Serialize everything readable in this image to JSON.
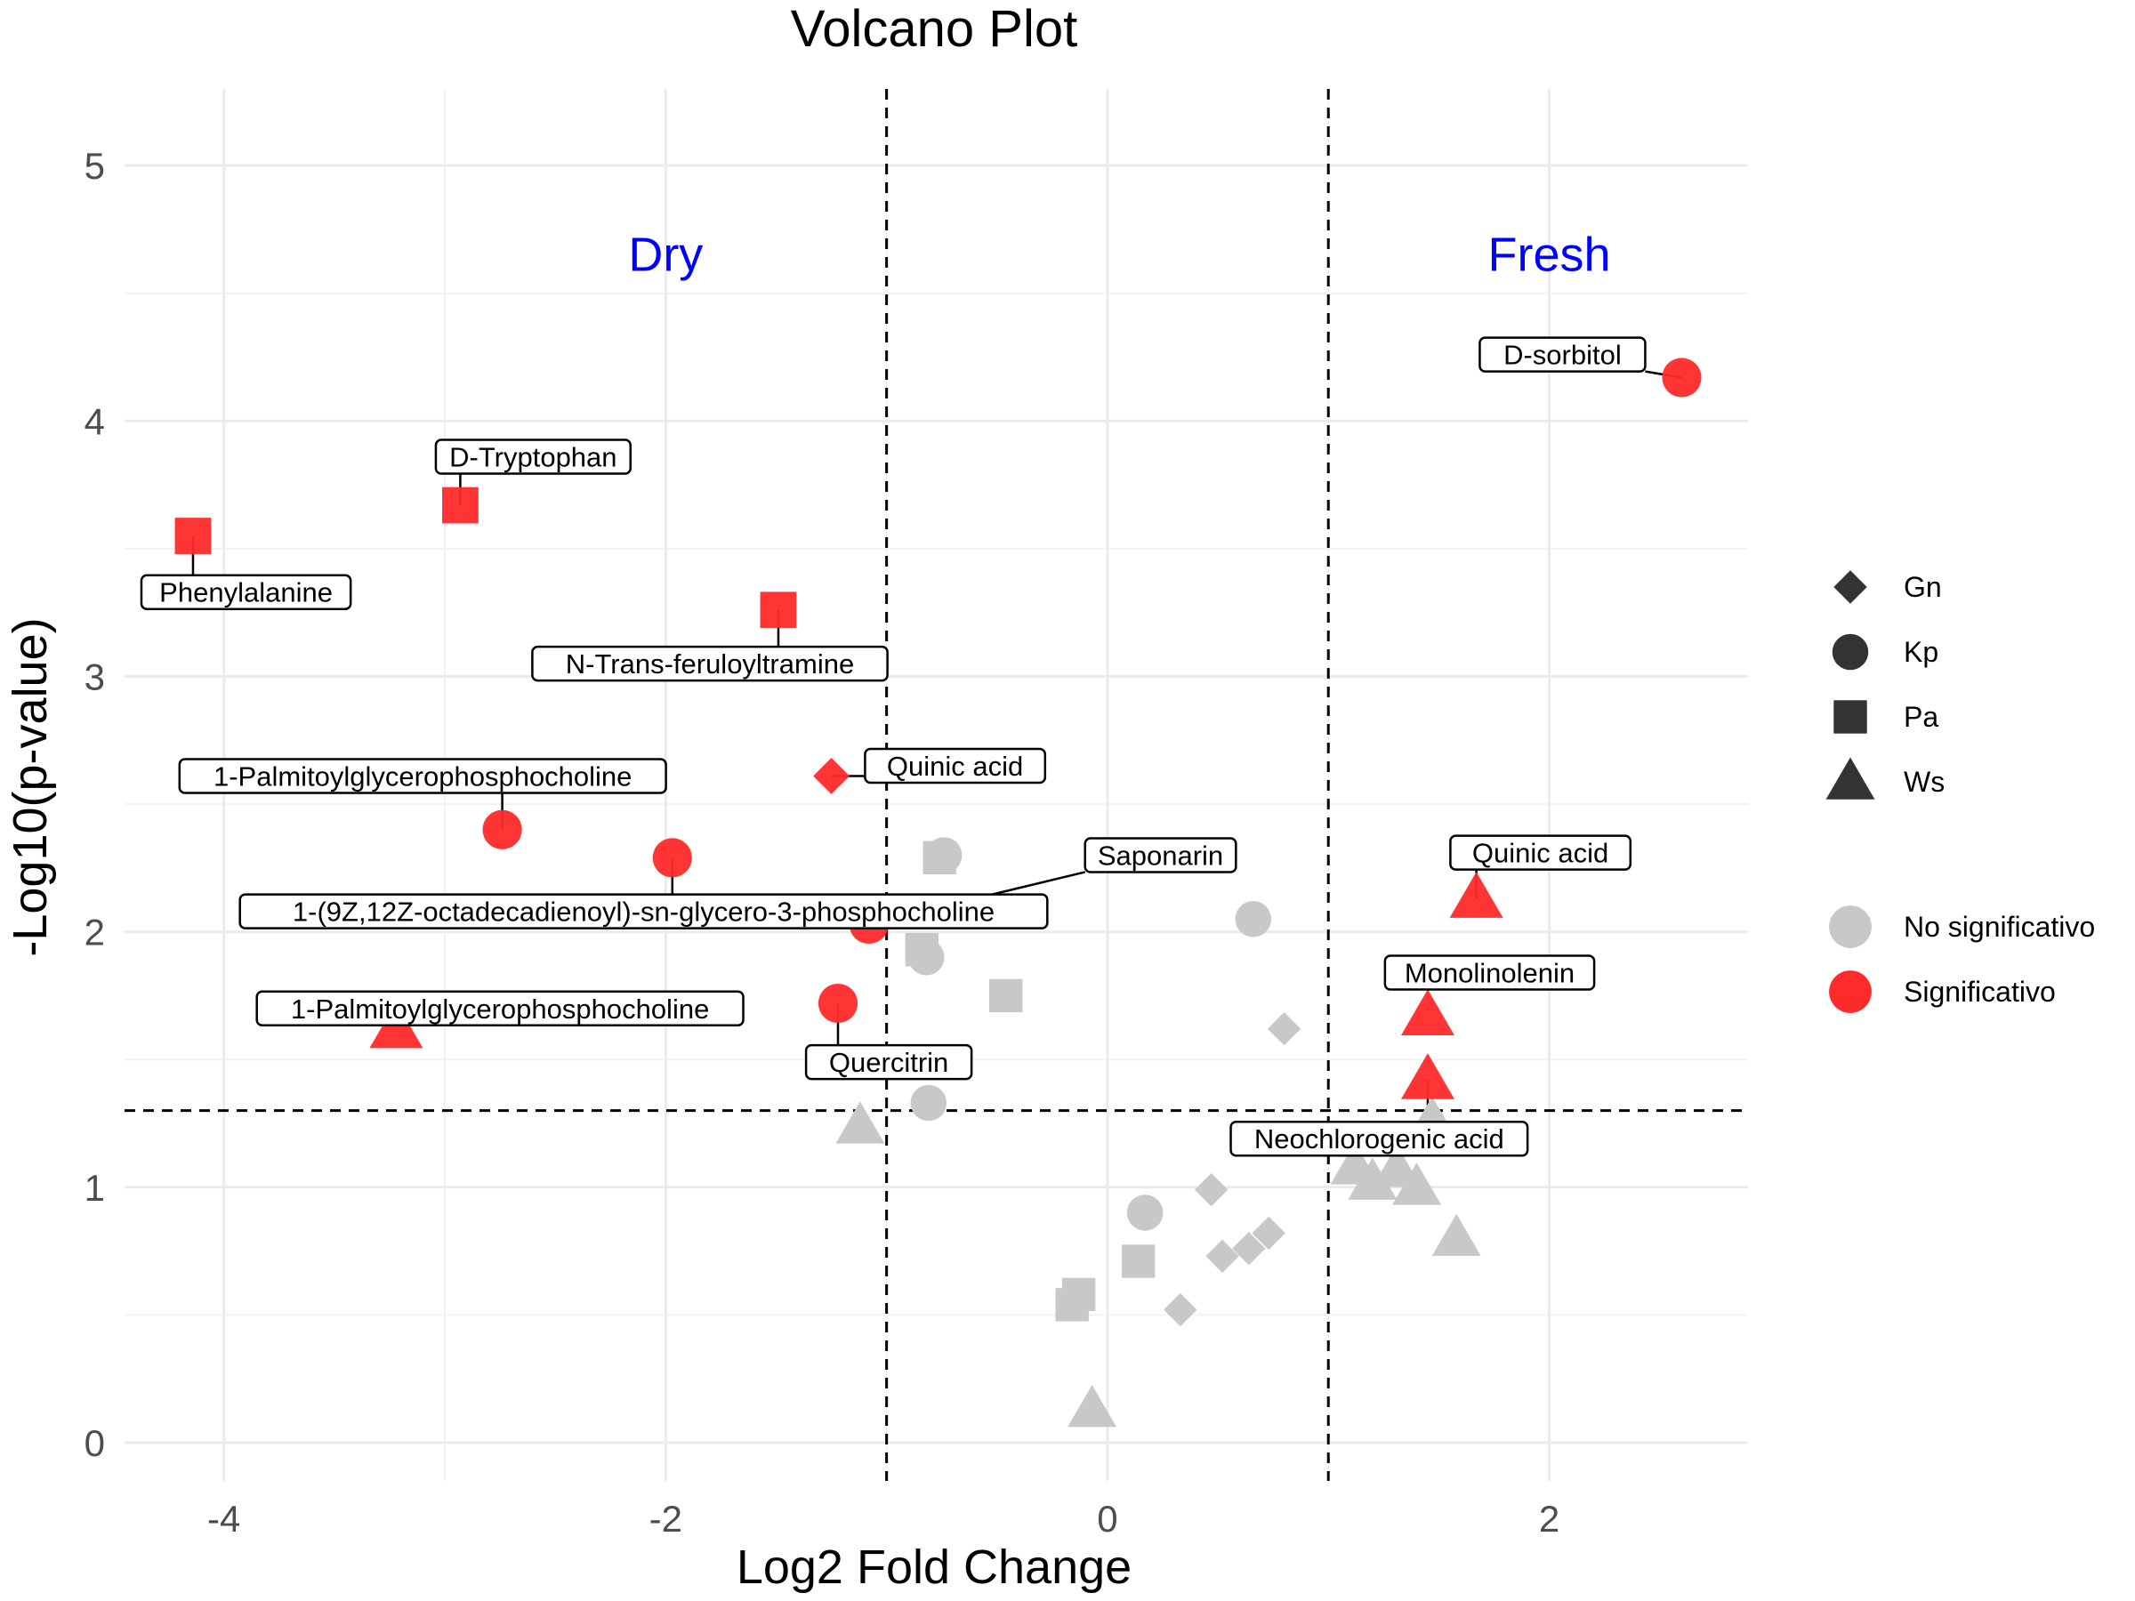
{
  "chart_data": {
    "type": "scatter",
    "title": "Volcano Plot",
    "xlabel": "Log2 Fold Change",
    "ylabel": "-Log10(p-value)",
    "xlim": [
      -4.45,
      2.9
    ],
    "ylim": [
      -0.15,
      5.3
    ],
    "xticks": [
      -4,
      -2,
      0,
      2
    ],
    "yticks": [
      0,
      1,
      2,
      3,
      4,
      5
    ],
    "xtick_labels": [
      "-4",
      "-2",
      "0",
      "2"
    ],
    "ytick_labels": [
      "0",
      "1",
      "2",
      "3",
      "4",
      "5"
    ],
    "grid": true,
    "thresholds": {
      "vertical": [
        -1,
        1
      ],
      "horizontal": 1.3
    },
    "regions": [
      {
        "label": "Dry",
        "x": -2,
        "y": 4.65,
        "color": "#0000ff"
      },
      {
        "label": "Fresh",
        "x": 2,
        "y": 4.65,
        "color": "#0000ff"
      }
    ],
    "colors": {
      "No significativo": "#c8c8c8",
      "Significativo": "#ff2a2a"
    },
    "legend": {
      "position": "right",
      "shape_items": [
        {
          "label": "Gn",
          "shape": "diamond"
        },
        {
          "label": "Kp",
          "shape": "circle"
        },
        {
          "label": "Pa",
          "shape": "square"
        },
        {
          "label": "Ws",
          "shape": "triangle"
        }
      ],
      "color_items": [
        {
          "label": "No significativo",
          "color": "#c8c8c8"
        },
        {
          "label": "Significativo",
          "color": "#ff2a2a"
        }
      ]
    },
    "points": [
      {
        "x": 2.6,
        "y": 4.17,
        "shape": "circle",
        "sig": true,
        "label": "D-sorbitol",
        "label_x": 2.06,
        "label_y": 4.26
      },
      {
        "x": -2.93,
        "y": 3.67,
        "shape": "square",
        "sig": true,
        "label": "D-Tryptophan",
        "label_x": -2.6,
        "label_y": 3.86
      },
      {
        "x": -4.14,
        "y": 3.55,
        "shape": "square",
        "sig": true,
        "label": "Phenylalanine",
        "label_x": -3.9,
        "label_y": 3.33
      },
      {
        "x": -1.49,
        "y": 3.26,
        "shape": "square",
        "sig": true,
        "label": "N-Trans-feruloyltramine",
        "label_x": -1.8,
        "label_y": 3.05
      },
      {
        "x": -1.25,
        "y": 2.61,
        "shape": "diamond",
        "sig": true,
        "label": "Quinic acid",
        "label_x": -0.69,
        "label_y": 2.65
      },
      {
        "x": -2.74,
        "y": 2.4,
        "shape": "circle",
        "sig": true,
        "label": "1-Palmitoylglycerophosphocholine",
        "label_x": -3.1,
        "label_y": 2.61
      },
      {
        "x": -1.97,
        "y": 2.29,
        "shape": "circle",
        "sig": true,
        "label": "1-(9Z,12Z-octadecadienoyl)-sn-glycero-3-phosphocholine",
        "label_x": -2.1,
        "label_y": 2.08
      },
      {
        "x": -1.08,
        "y": 2.03,
        "shape": "circle",
        "sig": true,
        "label": "Saponarin",
        "label_x": 0.24,
        "label_y": 2.3
      },
      {
        "x": -1.22,
        "y": 1.72,
        "shape": "circle",
        "sig": true,
        "label": "Quercitrin",
        "label_x": -0.99,
        "label_y": 1.49
      },
      {
        "x": -3.22,
        "y": 1.62,
        "shape": "triangle",
        "sig": true,
        "label": "1-Palmitoylglycerophosphocholine",
        "label_x": -2.75,
        "label_y": 1.7
      },
      {
        "x": 1.67,
        "y": 2.13,
        "shape": "triangle",
        "sig": true,
        "label": "Quinic acid",
        "label_x": 1.96,
        "label_y": 2.31
      },
      {
        "x": 1.45,
        "y": 1.67,
        "shape": "triangle",
        "sig": true,
        "label": "Monolinolenin",
        "label_x": 1.73,
        "label_y": 1.84
      },
      {
        "x": 1.45,
        "y": 1.42,
        "shape": "triangle",
        "sig": true,
        "label": "Neochlorogenic acid",
        "label_x": 1.23,
        "label_y": 1.19
      },
      {
        "x": -0.74,
        "y": 2.3,
        "shape": "circle",
        "sig": false
      },
      {
        "x": -0.76,
        "y": 2.29,
        "shape": "square",
        "sig": false
      },
      {
        "x": -0.82,
        "y": 1.9,
        "shape": "circle",
        "sig": false
      },
      {
        "x": -0.84,
        "y": 1.93,
        "shape": "square",
        "sig": false
      },
      {
        "x": -0.46,
        "y": 1.75,
        "shape": "square",
        "sig": false
      },
      {
        "x": -0.81,
        "y": 1.33,
        "shape": "circle",
        "sig": false
      },
      {
        "x": -1.12,
        "y": 1.24,
        "shape": "triangle",
        "sig": false
      },
      {
        "x": 0.66,
        "y": 2.05,
        "shape": "circle",
        "sig": false
      },
      {
        "x": 0.8,
        "y": 1.62,
        "shape": "diamond",
        "sig": false
      },
      {
        "x": 0.47,
        "y": 0.99,
        "shape": "diamond",
        "sig": false
      },
      {
        "x": 0.17,
        "y": 0.9,
        "shape": "circle",
        "sig": false
      },
      {
        "x": 0.14,
        "y": 0.71,
        "shape": "square",
        "sig": false
      },
      {
        "x": 0.52,
        "y": 0.73,
        "shape": "diamond",
        "sig": false
      },
      {
        "x": 0.64,
        "y": 0.76,
        "shape": "diamond",
        "sig": false
      },
      {
        "x": 0.73,
        "y": 0.82,
        "shape": "diamond",
        "sig": false
      },
      {
        "x": 0.33,
        "y": 0.52,
        "shape": "diamond",
        "sig": false
      },
      {
        "x": -0.13,
        "y": 0.58,
        "shape": "square",
        "sig": false
      },
      {
        "x": -0.16,
        "y": 0.54,
        "shape": "square",
        "sig": false
      },
      {
        "x": -0.07,
        "y": 0.13,
        "shape": "triangle",
        "sig": false
      },
      {
        "x": 1.12,
        "y": 1.08,
        "shape": "triangle",
        "sig": false
      },
      {
        "x": 1.2,
        "y": 1.02,
        "shape": "triangle",
        "sig": false
      },
      {
        "x": 1.31,
        "y": 1.07,
        "shape": "triangle",
        "sig": false
      },
      {
        "x": 1.4,
        "y": 1.0,
        "shape": "triangle",
        "sig": false
      },
      {
        "x": 1.47,
        "y": 1.26,
        "shape": "triangle",
        "sig": false
      },
      {
        "x": 1.58,
        "y": 0.8,
        "shape": "triangle",
        "sig": false
      }
    ]
  }
}
